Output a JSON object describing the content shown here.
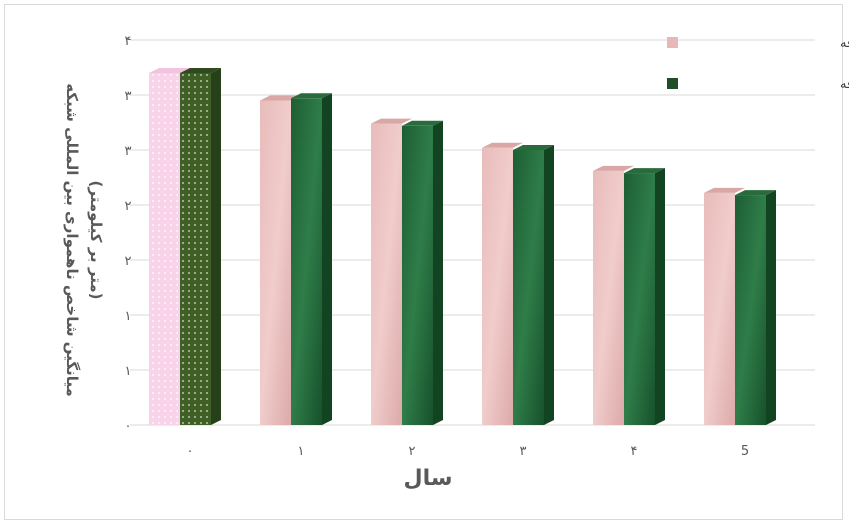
{
  "chart_data": {
    "type": "bar",
    "categories": [
      "۰",
      "۱",
      "۲",
      "۳",
      "۴",
      "5"
    ],
    "y_tick_labels": [
      "۰",
      "۱",
      "۱",
      "۲",
      "۲",
      "۳",
      "۳",
      "۴"
    ],
    "ylim": [
      0,
      3.5
    ],
    "xlabel": "سال",
    "ylabel_line1": "میانگین شاخص ناهمواری بین المللی شبکه",
    "ylabel_line2": "(متر بر کیلومتر)",
    "legend_position": "top-right",
    "grid": true,
    "series": [
      {
        "name": "بهینه سازی چند هدفه",
        "color": "#e6b8b7",
        "values": [
          3.2,
          2.95,
          2.74,
          2.52,
          2.31,
          2.11
        ]
      },
      {
        "name": "بهینه سازی تک هدفه",
        "color": "#1f6b3a",
        "values": [
          3.2,
          2.97,
          2.72,
          2.5,
          2.29,
          2.09
        ]
      }
    ]
  }
}
